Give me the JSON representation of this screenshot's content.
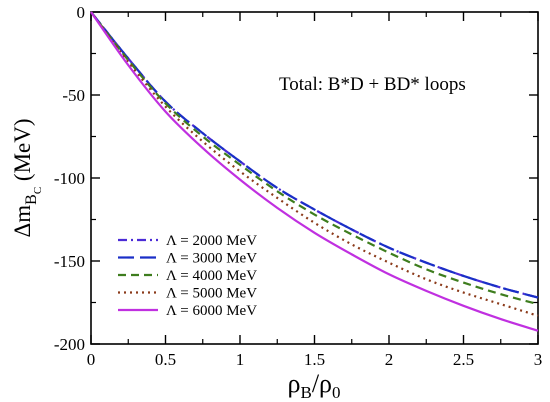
{
  "chart_data": {
    "type": "line",
    "title": "",
    "annotation": "Total: B*D + BD* loops",
    "xlabel": {
      "main": "ρ",
      "sub1": "B",
      "slash": "/ρ",
      "sub2": "0"
    },
    "ylabel": {
      "main": "Δm",
      "sub1": "B",
      "sub2": "C",
      "unit": " (MeV)"
    },
    "xlim": [
      0,
      3
    ],
    "ylim": [
      -200,
      0
    ],
    "x_ticks": [
      0,
      0.5,
      1,
      1.5,
      2,
      2.5,
      3
    ],
    "x_tick_labels": [
      "0",
      "0.5",
      "1",
      "1.5",
      "2",
      "2.5",
      "3"
    ],
    "y_ticks": [
      0,
      -50,
      -100,
      -150,
      -200
    ],
    "y_tick_labels": [
      "0",
      "-50",
      "-100",
      "-150",
      "-200"
    ],
    "grid": false,
    "legend_position": "bottom-left",
    "x": [
      0,
      0.25,
      0.5,
      0.75,
      1.0,
      1.25,
      1.5,
      1.75,
      2.0,
      2.25,
      2.5,
      2.75,
      3.0
    ],
    "series": [
      {
        "name": "Λ = 2000 MeV",
        "color": "#4b2bd6",
        "dash": "dashdot",
        "values": [
          0,
          -28,
          -54,
          -73,
          -90,
          -106,
          -119,
          -131,
          -142,
          -151,
          -159,
          -166,
          -172
        ]
      },
      {
        "name": "Λ = 3000 MeV",
        "color": "#1a2fc7",
        "dash": "longdash",
        "values": [
          0,
          -28,
          -54,
          -73,
          -90,
          -106,
          -119,
          -131,
          -142,
          -151,
          -159,
          -166,
          -172
        ]
      },
      {
        "name": "Λ = 4000 MeV",
        "color": "#3e7d1e",
        "dash": "dash",
        "values": [
          0,
          -29,
          -55,
          -75,
          -92,
          -108,
          -122,
          -134,
          -145,
          -155,
          -163,
          -170,
          -176
        ]
      },
      {
        "name": "Λ = 5000 MeV",
        "color": "#8b3a1a",
        "dash": "dot",
        "values": [
          0,
          -30,
          -57,
          -78,
          -96,
          -112,
          -127,
          -140,
          -151,
          -161,
          -169,
          -176,
          -183
        ]
      },
      {
        "name": "Λ = 6000 MeV",
        "color": "#c030e0",
        "dash": "solid",
        "values": [
          0,
          -32,
          -60,
          -82,
          -101,
          -118,
          -133,
          -146,
          -158,
          -168,
          -177,
          -185,
          -192
        ]
      }
    ]
  }
}
